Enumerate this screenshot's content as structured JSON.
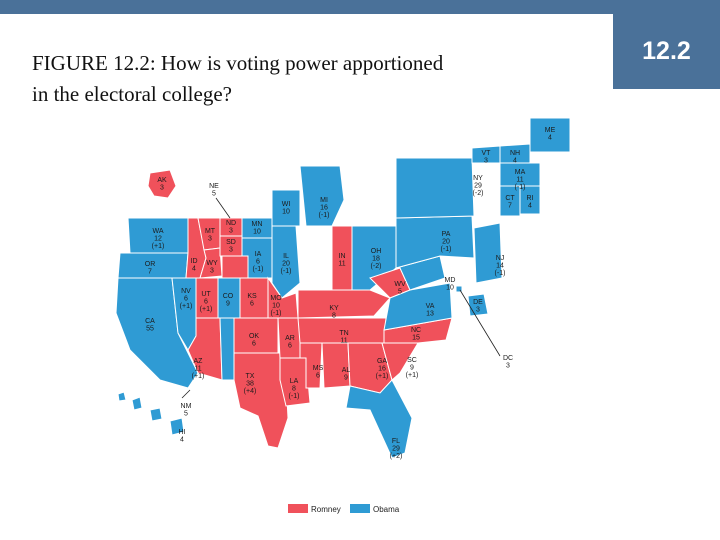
{
  "slide": {
    "badge": "12.2",
    "title_line1": "FIGURE 12.2: How is voting power apportioned",
    "title_line2": "in the electoral college?"
  },
  "colors": {
    "romney": "#f0515b",
    "obama": "#2f9bd4",
    "bar": "#4a7199"
  },
  "legend": {
    "romney": "Romney",
    "obama": "Obama"
  },
  "states": {
    "AK": {
      "abbr": "AK",
      "ev": "3",
      "change": "",
      "party": "romney"
    },
    "ME": {
      "abbr": "ME",
      "ev": "4",
      "change": "",
      "party": "obama"
    },
    "ND": {
      "abbr": "ND",
      "ev": "3",
      "change": "",
      "party": "romney"
    },
    "MT": {
      "abbr": "MT",
      "ev": "3",
      "change": "",
      "party": "romney"
    },
    "WA": {
      "abbr": "WA",
      "ev": "12",
      "change": "(+1)",
      "party": "obama"
    },
    "OR": {
      "abbr": "OR",
      "ev": "7",
      "change": "",
      "party": "obama"
    },
    "ID": {
      "abbr": "ID",
      "ev": "4",
      "change": "",
      "party": "romney"
    },
    "WY": {
      "abbr": "WY",
      "ev": "3",
      "change": "",
      "party": "romney"
    },
    "SD": {
      "abbr": "SD",
      "ev": "3",
      "change": "",
      "party": "romney"
    },
    "NE": {
      "abbr": "NE",
      "ev": "5",
      "change": "",
      "party": "romney"
    },
    "MN": {
      "abbr": "MN",
      "ev": "10",
      "change": "",
      "party": "obama"
    },
    "WI": {
      "abbr": "WI",
      "ev": "10",
      "change": "",
      "party": "obama"
    },
    "MI": {
      "abbr": "MI",
      "ev": "16",
      "change": "(-1)",
      "party": "obama"
    },
    "IA": {
      "abbr": "IA",
      "ev": "6",
      "change": "(-1)",
      "party": "obama"
    },
    "IL": {
      "abbr": "IL",
      "ev": "20",
      "change": "(-1)",
      "party": "obama"
    },
    "IN": {
      "abbr": "IN",
      "ev": "11",
      "change": "",
      "party": "romney"
    },
    "OH": {
      "abbr": "OH",
      "ev": "18",
      "change": "(-2)",
      "party": "obama"
    },
    "PA": {
      "abbr": "PA",
      "ev": "20",
      "change": "(-1)",
      "party": "obama"
    },
    "NY": {
      "abbr": "NY",
      "ev": "29",
      "change": "(-2)",
      "party": "obama"
    },
    "VT": {
      "abbr": "VT",
      "ev": "3",
      "change": "",
      "party": "obama"
    },
    "NH": {
      "abbr": "NH",
      "ev": "4",
      "change": "",
      "party": "obama"
    },
    "MA": {
      "abbr": "MA",
      "ev": "11",
      "change": "(-1)",
      "party": "obama"
    },
    "RI": {
      "abbr": "RI",
      "ev": "4",
      "change": "",
      "party": "obama"
    },
    "CT": {
      "abbr": "CT",
      "ev": "7",
      "change": "",
      "party": "obama"
    },
    "NJ": {
      "abbr": "NJ",
      "ev": "14",
      "change": "(-1)",
      "party": "obama"
    },
    "MD": {
      "abbr": "MD",
      "ev": "10",
      "change": "",
      "party": "obama"
    },
    "DE": {
      "abbr": "DE",
      "ev": "3",
      "change": "",
      "party": "obama"
    },
    "DC": {
      "abbr": "DC",
      "ev": "3",
      "change": "",
      "party": "obama"
    },
    "NV": {
      "abbr": "NV",
      "ev": "6",
      "change": "(+1)",
      "party": "obama"
    },
    "UT": {
      "abbr": "UT",
      "ev": "6",
      "change": "(+1)",
      "party": "romney"
    },
    "CO": {
      "abbr": "CO",
      "ev": "9",
      "change": "",
      "party": "obama"
    },
    "KS": {
      "abbr": "KS",
      "ev": "6",
      "change": "",
      "party": "romney"
    },
    "MO": {
      "abbr": "MO",
      "ev": "10",
      "change": "(-1)",
      "party": "romney"
    },
    "KY": {
      "abbr": "KY",
      "ev": "8",
      "change": "",
      "party": "romney"
    },
    "WV": {
      "abbr": "WV",
      "ev": "5",
      "change": "",
      "party": "romney"
    },
    "VA": {
      "abbr": "VA",
      "ev": "13",
      "change": "",
      "party": "obama"
    },
    "CA": {
      "abbr": "CA",
      "ev": "55",
      "change": "",
      "party": "obama"
    },
    "AZ": {
      "abbr": "AZ",
      "ev": "11",
      "change": "(+1)",
      "party": "romney"
    },
    "NM": {
      "abbr": "NM",
      "ev": "5",
      "change": "",
      "party": "obama"
    },
    "OK": {
      "abbr": "OK",
      "ev": "6",
      "change": "",
      "party": "romney"
    },
    "AR": {
      "abbr": "AR",
      "ev": "6",
      "change": "",
      "party": "romney"
    },
    "TN": {
      "abbr": "TN",
      "ev": "11",
      "change": "",
      "party": "romney"
    },
    "NC": {
      "abbr": "NC",
      "ev": "15",
      "change": "",
      "party": "romney"
    },
    "SC": {
      "abbr": "SC",
      "ev": "9",
      "change": "(+1)",
      "party": "romney"
    },
    "GA": {
      "abbr": "GA",
      "ev": "16",
      "change": "(+1)",
      "party": "romney"
    },
    "AL": {
      "abbr": "AL",
      "ev": "9",
      "change": "",
      "party": "romney"
    },
    "MS": {
      "abbr": "MS",
      "ev": "6",
      "change": "",
      "party": "romney"
    },
    "LA": {
      "abbr": "LA",
      "ev": "8",
      "change": "(-1)",
      "party": "romney"
    },
    "TX": {
      "abbr": "TX",
      "ev": "38",
      "change": "(+4)",
      "party": "romney"
    },
    "FL": {
      "abbr": "FL",
      "ev": "29",
      "change": "(+2)",
      "party": "obama"
    },
    "HI": {
      "abbr": "HI",
      "ev": "4",
      "change": "",
      "party": "obama"
    }
  }
}
